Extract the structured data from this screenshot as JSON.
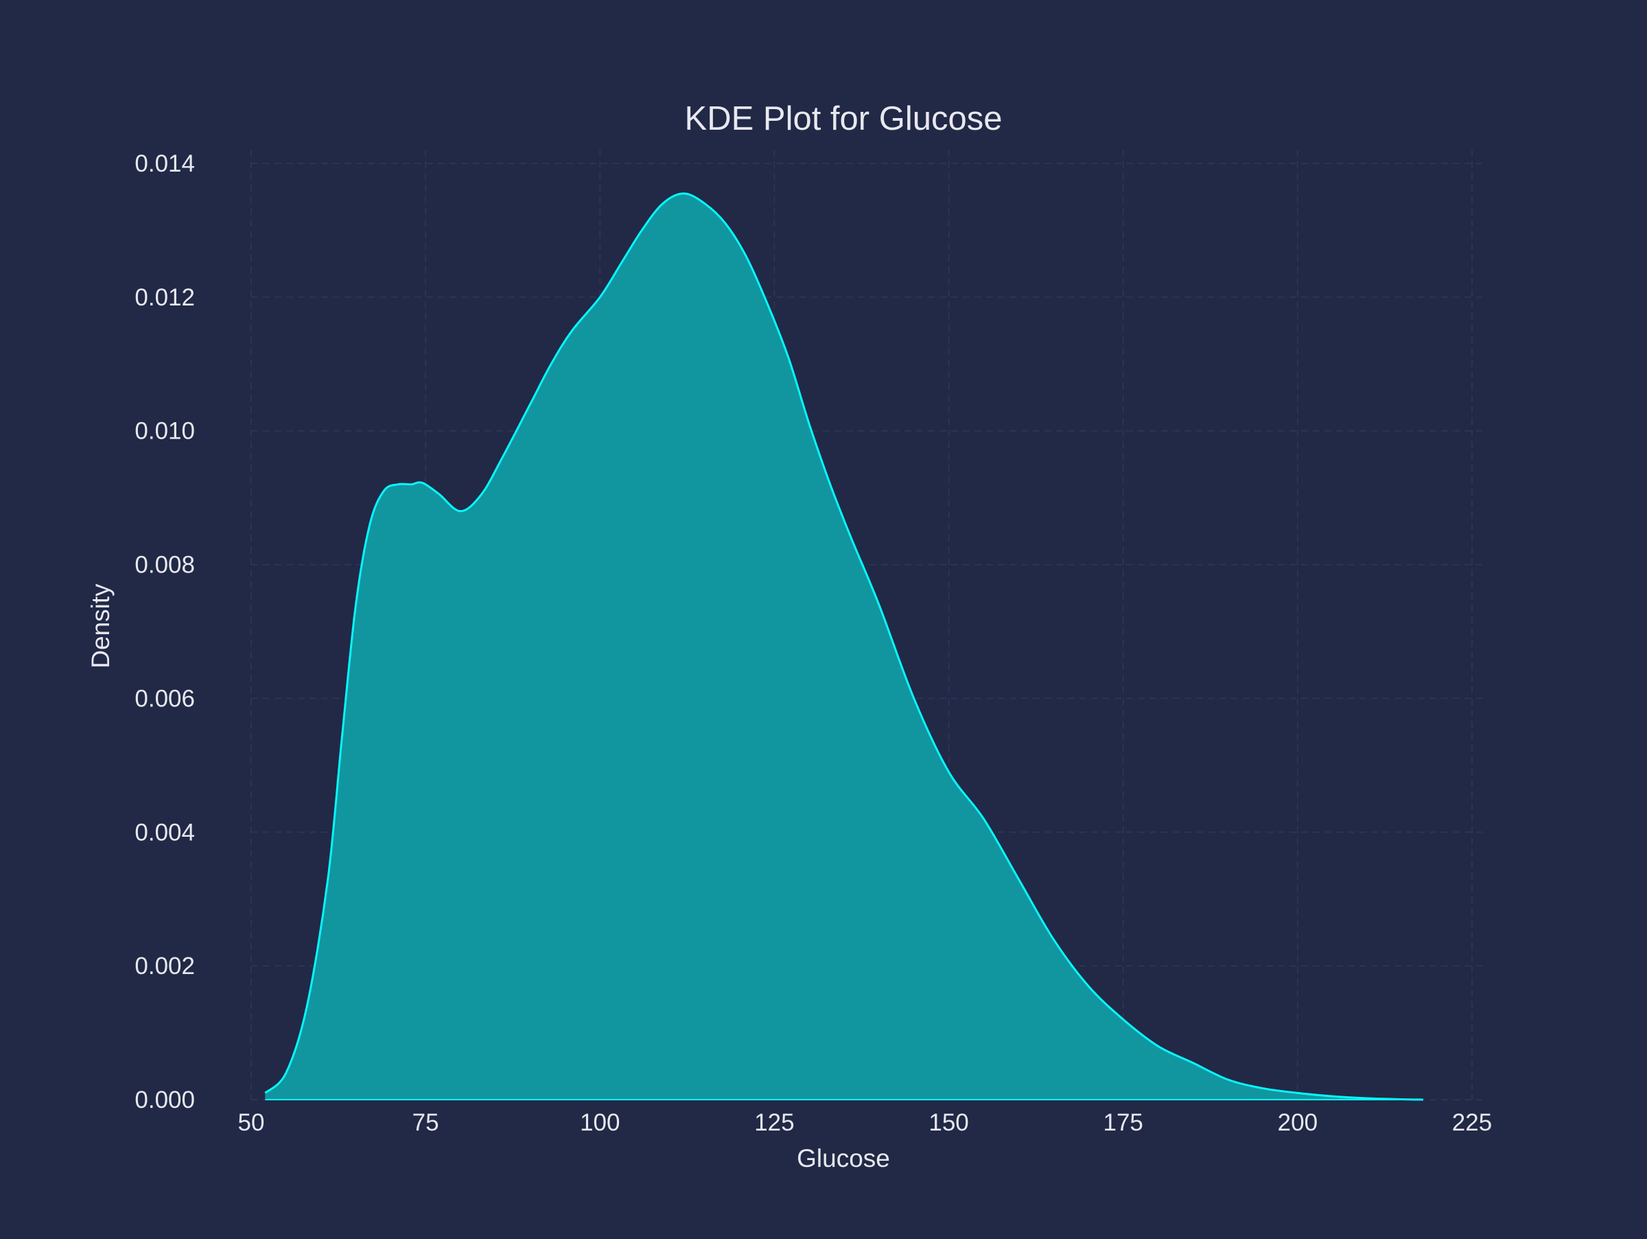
{
  "chart_data": {
    "type": "area",
    "title": "KDE Plot for Glucose",
    "xlabel": "Glucose",
    "ylabel": "Density",
    "xlim": [
      50,
      225
    ],
    "ylim": [
      0,
      0.014
    ],
    "x_ticks": [
      "50",
      "75",
      "100",
      "125",
      "150",
      "175",
      "200",
      "225"
    ],
    "y_ticks": [
      "0.000",
      "0.002",
      "0.004",
      "0.006",
      "0.008",
      "0.010",
      "0.012",
      "0.014"
    ],
    "grid": true,
    "series": [
      {
        "line_color": "#08F7FE",
        "fill_color": "#11969F",
        "x": [
          52,
          55,
          58,
          61,
          63,
          65,
          67,
          69,
          71,
          73,
          74,
          75,
          77,
          80,
          83,
          86,
          90,
          93,
          96,
          100,
          103,
          106,
          109,
          112,
          115,
          118,
          121,
          124,
          127,
          130,
          133,
          136,
          140,
          145,
          150,
          155,
          160,
          165,
          170,
          175,
          180,
          185,
          190,
          195,
          200,
          205,
          210,
          215,
          218
        ],
        "y": [
          0.0001,
          0.0004,
          0.0014,
          0.0033,
          0.0054,
          0.0074,
          0.0086,
          0.0091,
          0.0092,
          0.0092,
          0.00923,
          0.0092,
          0.00905,
          0.0088,
          0.00905,
          0.0096,
          0.0104,
          0.011,
          0.0115,
          0.012,
          0.0125,
          0.013,
          0.0134,
          0.01355,
          0.0134,
          0.0131,
          0.0126,
          0.0119,
          0.0111,
          0.0101,
          0.0092,
          0.0084,
          0.0074,
          0.006,
          0.0049,
          0.0042,
          0.0033,
          0.0024,
          0.0017,
          0.0012,
          0.0008,
          0.00055,
          0.0003,
          0.00017,
          0.0001,
          5e-05,
          2e-05,
          5e-06,
          0.0
        ]
      }
    ]
  }
}
